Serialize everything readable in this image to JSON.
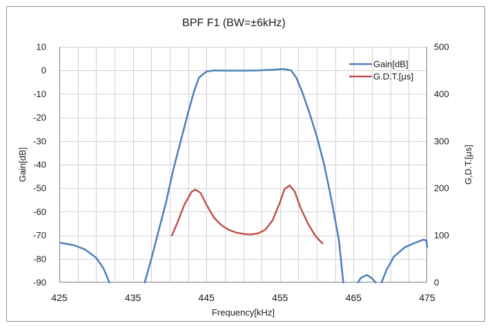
{
  "chart_data": {
    "type": "line",
    "title": "BPF F1 (BW=±6kHz)",
    "xlabel": "Frequency[kHz]",
    "ylabel": "Gain[dB]",
    "y2label": "G,D.T.[μs]",
    "xlim": [
      425,
      475
    ],
    "ylim": [
      -90,
      10
    ],
    "y2lim": [
      0,
      500
    ],
    "x_ticks": [
      425,
      435,
      445,
      455,
      465,
      475
    ],
    "x_minor_step": 2.5,
    "y_ticks": [
      10,
      0,
      -10,
      -20,
      -30,
      -40,
      -50,
      -60,
      -70,
      -80,
      -90
    ],
    "y2_ticks": [
      500,
      400,
      300,
      200,
      100,
      0
    ],
    "grid": true,
    "legend_position": "top-right",
    "series": [
      {
        "name": "Gain[dB]",
        "axis": "left",
        "color": "#4a7ebb",
        "segments": [
          [
            [
              425.2,
              -73.2
            ],
            [
              427,
              -74.2
            ],
            [
              428.5,
              -76
            ],
            [
              430,
              -79.5
            ],
            [
              431,
              -84
            ],
            [
              431.8,
              -90
            ]
          ],
          [
            [
              436.6,
              -90
            ],
            [
              437.5,
              -80
            ],
            [
              438.5,
              -68
            ],
            [
              439.5,
              -56
            ],
            [
              440.5,
              -42
            ],
            [
              441.5,
              -30
            ],
            [
              442.5,
              -18
            ],
            [
              443.3,
              -9
            ],
            [
              444,
              -3
            ],
            [
              445,
              -0.5
            ],
            [
              446,
              0
            ],
            [
              448,
              -0.1
            ],
            [
              450,
              -0.1
            ],
            [
              452,
              0
            ],
            [
              454,
              0.3
            ],
            [
              455.5,
              0.6
            ],
            [
              456.5,
              0
            ],
            [
              457.2,
              -3
            ],
            [
              458,
              -9
            ],
            [
              459,
              -18
            ],
            [
              460,
              -28
            ],
            [
              461,
              -40
            ],
            [
              462,
              -55
            ],
            [
              463,
              -72
            ],
            [
              463.6,
              -90
            ]
          ],
          [
            [
              465.6,
              -90
            ],
            [
              466,
              -88
            ],
            [
              466.8,
              -86.8
            ],
            [
              467.5,
              -88.2
            ],
            [
              468,
              -90
            ]
          ],
          [
            [
              468.8,
              -90
            ],
            [
              469.5,
              -84.5
            ],
            [
              470.5,
              -79
            ],
            [
              472,
              -75
            ],
            [
              473.5,
              -73
            ],
            [
              474.5,
              -71.8
            ],
            [
              474.9,
              -72.2
            ],
            [
              475,
              -75
            ]
          ]
        ]
      },
      {
        "name": "G.D.T.[μs]",
        "axis": "right",
        "color": "#c0504d",
        "segments": [
          [
            [
              440.3,
              100
            ],
            [
              441,
              125
            ],
            [
              442,
              165
            ],
            [
              443,
              193
            ],
            [
              443.5,
              197
            ],
            [
              444.2,
              190
            ],
            [
              445,
              165
            ],
            [
              446,
              138
            ],
            [
              447,
              122
            ],
            [
              448,
              112
            ],
            [
              449,
              106
            ],
            [
              450,
              103
            ],
            [
              451,
              102
            ],
            [
              452,
              104
            ],
            [
              453,
              112
            ],
            [
              454,
              132
            ],
            [
              455,
              170
            ],
            [
              455.6,
              198
            ],
            [
              456.3,
              206
            ],
            [
              457,
              193
            ],
            [
              457.8,
              158
            ],
            [
              458.8,
              125
            ],
            [
              459.8,
              99
            ],
            [
              460.5,
              87
            ],
            [
              460.8,
              83
            ]
          ]
        ]
      }
    ]
  }
}
